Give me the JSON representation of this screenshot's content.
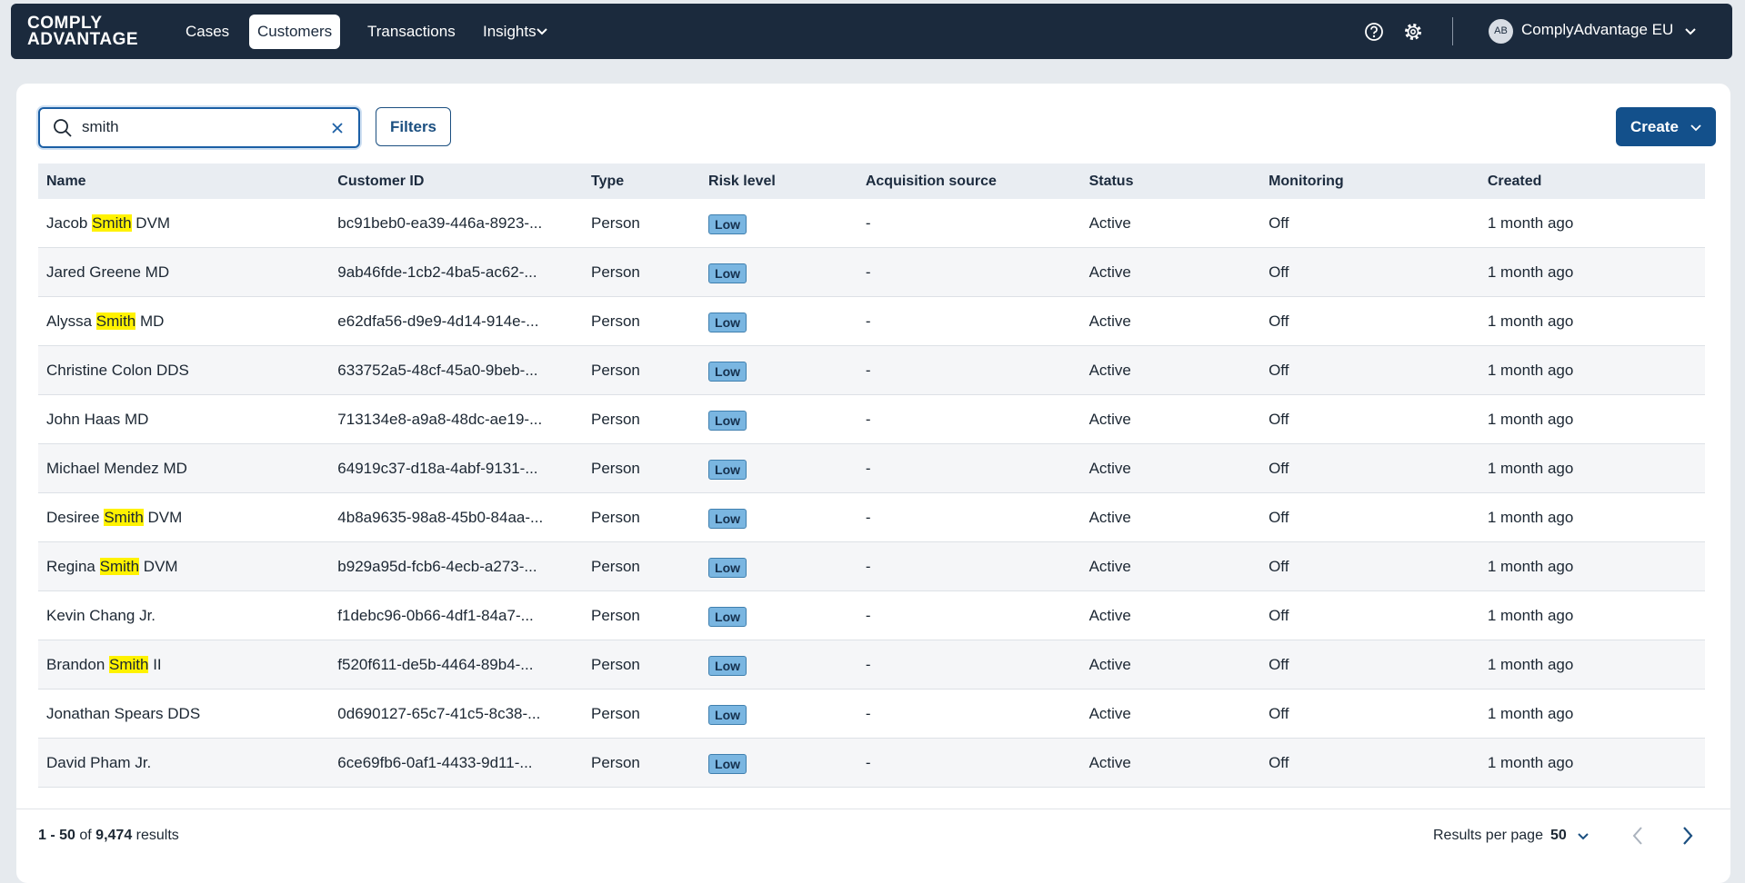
{
  "nav": {
    "logo": [
      "COMPLY",
      "ADVANTAGE"
    ],
    "items": [
      "Cases",
      "Customers",
      "Transactions",
      "Insights"
    ],
    "active": 1,
    "avatar": "AB",
    "account": "ComplyAdvantage EU"
  },
  "search": {
    "value": "smith"
  },
  "filters": "Filters",
  "create": "Create",
  "table": {
    "columns": [
      "Name",
      "Customer ID",
      "Type",
      "Risk level",
      "Acquisition source",
      "Status",
      "Monitoring",
      "Created"
    ],
    "rows": [
      {
        "name": [
          {
            "text": "Jacob "
          },
          {
            "text": "Smith",
            "highlight": true
          },
          {
            "text": " DVM"
          }
        ],
        "id": "bc91beb0-ea39-446a-8923-...",
        "type": "Person",
        "risk": "Low",
        "source": "-",
        "status": "Active",
        "monitoring": "Off",
        "created": "1 month ago"
      },
      {
        "name": [
          {
            "text": "Jared Greene MD"
          }
        ],
        "id": "9ab46fde-1cb2-4ba5-ac62-...",
        "type": "Person",
        "risk": "Low",
        "source": "-",
        "status": "Active",
        "monitoring": "Off",
        "created": "1 month ago"
      },
      {
        "name": [
          {
            "text": "Alyssa "
          },
          {
            "text": "Smith",
            "highlight": true
          },
          {
            "text": " MD"
          }
        ],
        "id": "e62dfa56-d9e9-4d14-914e-...",
        "type": "Person",
        "risk": "Low",
        "source": "-",
        "status": "Active",
        "monitoring": "Off",
        "created": "1 month ago"
      },
      {
        "name": [
          {
            "text": "Christine Colon DDS"
          }
        ],
        "id": "633752a5-48cf-45a0-9beb-...",
        "type": "Person",
        "risk": "Low",
        "source": "-",
        "status": "Active",
        "monitoring": "Off",
        "created": "1 month ago"
      },
      {
        "name": [
          {
            "text": "John Haas MD"
          }
        ],
        "id": "713134e8-a9a8-48dc-ae19-...",
        "type": "Person",
        "risk": "Low",
        "source": "-",
        "status": "Active",
        "monitoring": "Off",
        "created": "1 month ago"
      },
      {
        "name": [
          {
            "text": "Michael Mendez MD"
          }
        ],
        "id": "64919c37-d18a-4abf-9131-...",
        "type": "Person",
        "risk": "Low",
        "source": "-",
        "status": "Active",
        "monitoring": "Off",
        "created": "1 month ago"
      },
      {
        "name": [
          {
            "text": "Desiree "
          },
          {
            "text": "Smith",
            "highlight": true
          },
          {
            "text": " DVM"
          }
        ],
        "id": "4b8a9635-98a8-45b0-84aa-...",
        "type": "Person",
        "risk": "Low",
        "source": "-",
        "status": "Active",
        "monitoring": "Off",
        "created": "1 month ago"
      },
      {
        "name": [
          {
            "text": "Regina "
          },
          {
            "text": "Smith",
            "highlight": true
          },
          {
            "text": " DVM"
          }
        ],
        "id": "b929a95d-fcb6-4ecb-a273-...",
        "type": "Person",
        "risk": "Low",
        "source": "-",
        "status": "Active",
        "monitoring": "Off",
        "created": "1 month ago"
      },
      {
        "name": [
          {
            "text": "Kevin Chang Jr."
          }
        ],
        "id": "f1debc96-0b66-4df1-84a7-...",
        "type": "Person",
        "risk": "Low",
        "source": "-",
        "status": "Active",
        "monitoring": "Off",
        "created": "1 month ago"
      },
      {
        "name": [
          {
            "text": "Brandon "
          },
          {
            "text": "Smith",
            "highlight": true
          },
          {
            "text": " II"
          }
        ],
        "id": "f520f611-de5b-4464-89b4-...",
        "type": "Person",
        "risk": "Low",
        "source": "-",
        "status": "Active",
        "monitoring": "Off",
        "created": "1 month ago"
      },
      {
        "name": [
          {
            "text": "Jonathan Spears DDS"
          }
        ],
        "id": "0d690127-65c7-41c5-8c38-...",
        "type": "Person",
        "risk": "Low",
        "source": "-",
        "status": "Active",
        "monitoring": "Off",
        "created": "1 month ago"
      },
      {
        "name": [
          {
            "text": "David Pham Jr."
          }
        ],
        "id": "6ce69fb6-0af1-4433-9d11-...",
        "type": "Person",
        "risk": "Low",
        "source": "-",
        "status": "Active",
        "monitoring": "Off",
        "created": "1 month ago"
      }
    ]
  },
  "footer": {
    "range": "1 - 50",
    "of": "of",
    "total": "9,474",
    "results": "results",
    "per_page_label": "Results per page",
    "per_page": "50"
  }
}
